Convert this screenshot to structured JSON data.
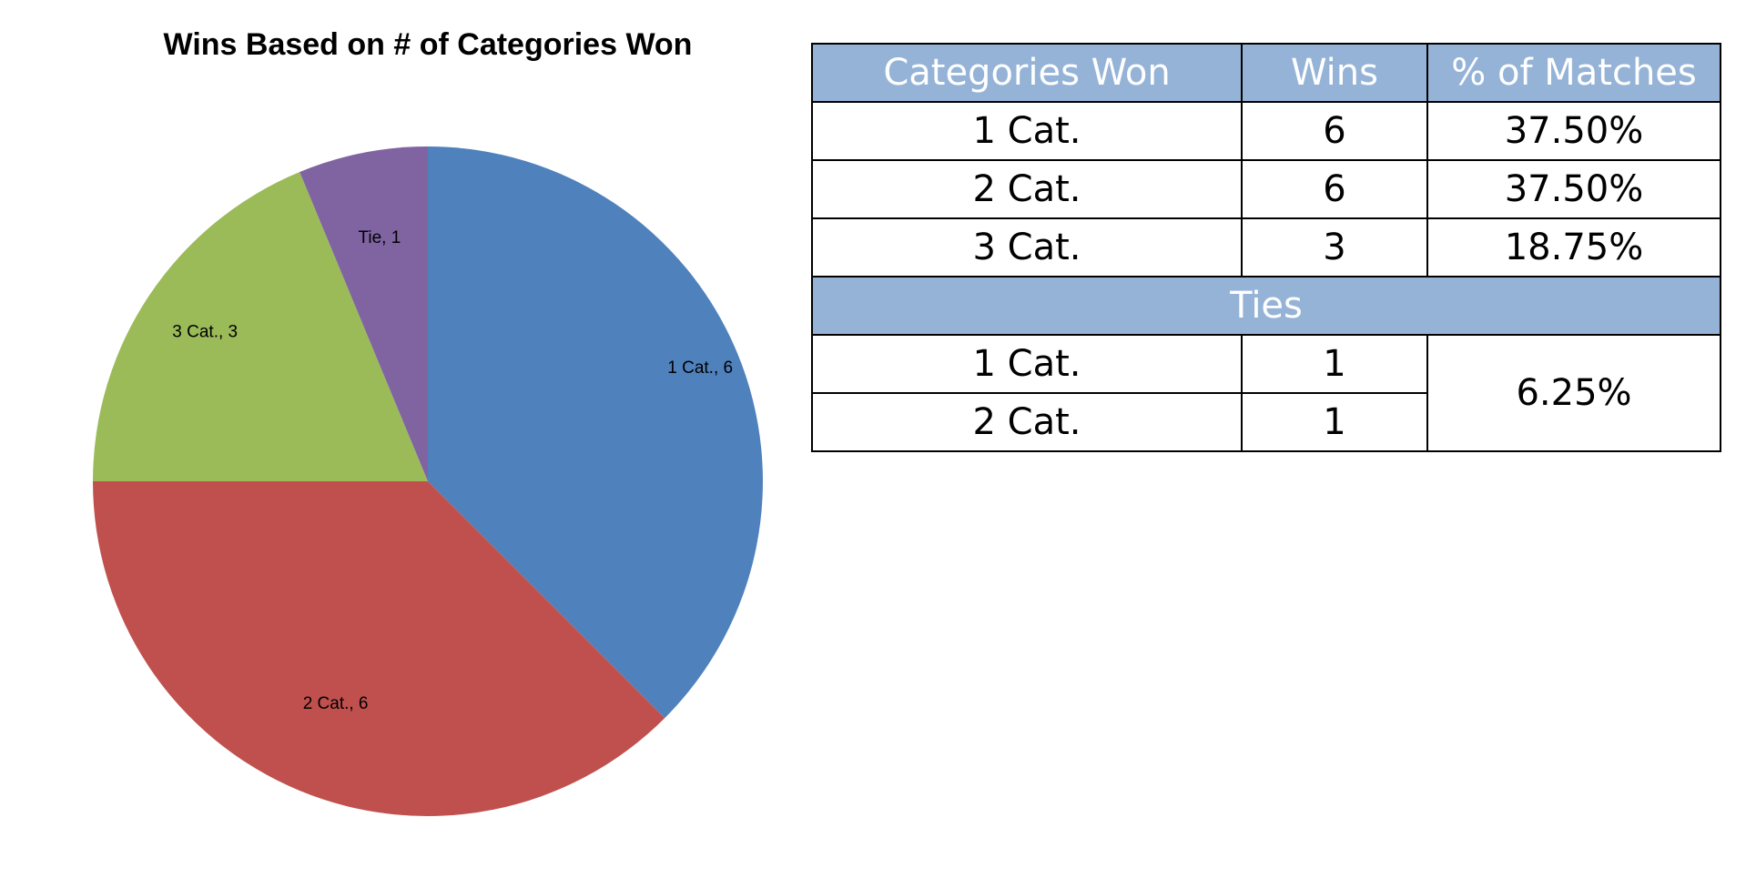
{
  "chart_data": {
    "type": "pie",
    "title": "Wins Based on # of Categories Won",
    "slices": [
      {
        "label": "1 Cat.",
        "value": 6,
        "data_label": "1 Cat., 6",
        "color": "#4f81bd"
      },
      {
        "label": "2 Cat.",
        "value": 6,
        "data_label": "2 Cat., 6",
        "color": "#c0504d"
      },
      {
        "label": "3 Cat.",
        "value": 3,
        "data_label": "3 Cat., 3",
        "color": "#9bbb59"
      },
      {
        "label": "Tie",
        "value": 1,
        "data_label": "Tie, 1",
        "color": "#8064a2"
      }
    ]
  },
  "table": {
    "header_color": "#95b3d7",
    "headers": [
      "Categories Won",
      "Wins",
      "% of Matches"
    ],
    "rows": [
      {
        "category": "1 Cat.",
        "wins": "6",
        "pct": "37.50%"
      },
      {
        "category": "2 Cat.",
        "wins": "6",
        "pct": "37.50%"
      },
      {
        "category": "3 Cat.",
        "wins": "3",
        "pct": "18.75%"
      }
    ],
    "ties_header": "Ties",
    "tie_rows": [
      {
        "category": "1 Cat.",
        "wins": "1"
      },
      {
        "category": "2 Cat.",
        "wins": "1"
      }
    ],
    "ties_pct": "6.25%"
  }
}
